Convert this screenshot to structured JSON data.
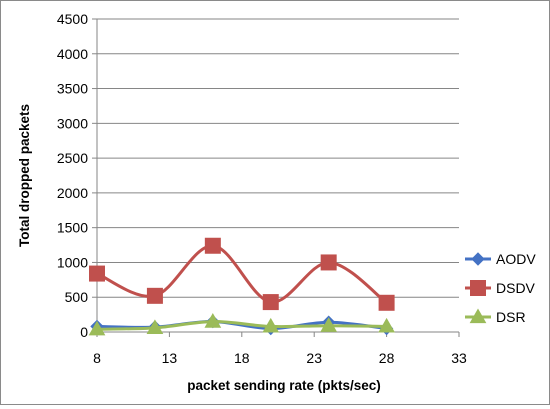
{
  "chart_data": {
    "type": "line",
    "smooth": true,
    "xlabel": "packet sending rate (pkts/sec)",
    "ylabel": "Total dropped packets",
    "x_ticks": [
      "8",
      "13",
      "18",
      "23",
      "28",
      "33"
    ],
    "y_ticks": [
      "0",
      "500",
      "1000",
      "1500",
      "2000",
      "2500",
      "3000",
      "3500",
      "4000",
      "4500"
    ],
    "xlim": [
      8,
      33
    ],
    "ylim": [
      0,
      4500
    ],
    "grid": "horizontal",
    "legend_position": "right",
    "series": [
      {
        "name": "AODV",
        "color": "#4472C4",
        "marker": "diamond",
        "x": [
          8,
          12,
          16,
          20,
          24,
          28
        ],
        "values": [
          80,
          70,
          150,
          50,
          140,
          50
        ]
      },
      {
        "name": "DSDV",
        "color": "#C0504D",
        "marker": "square",
        "x": [
          8,
          12,
          16,
          20,
          24,
          28
        ],
        "values": [
          840,
          520,
          1240,
          430,
          1000,
          420
        ]
      },
      {
        "name": "DSR",
        "color": "#9BBB59",
        "marker": "triangle",
        "x": [
          8,
          12,
          16,
          20,
          24,
          28
        ],
        "values": [
          40,
          60,
          150,
          80,
          90,
          80
        ]
      }
    ]
  }
}
